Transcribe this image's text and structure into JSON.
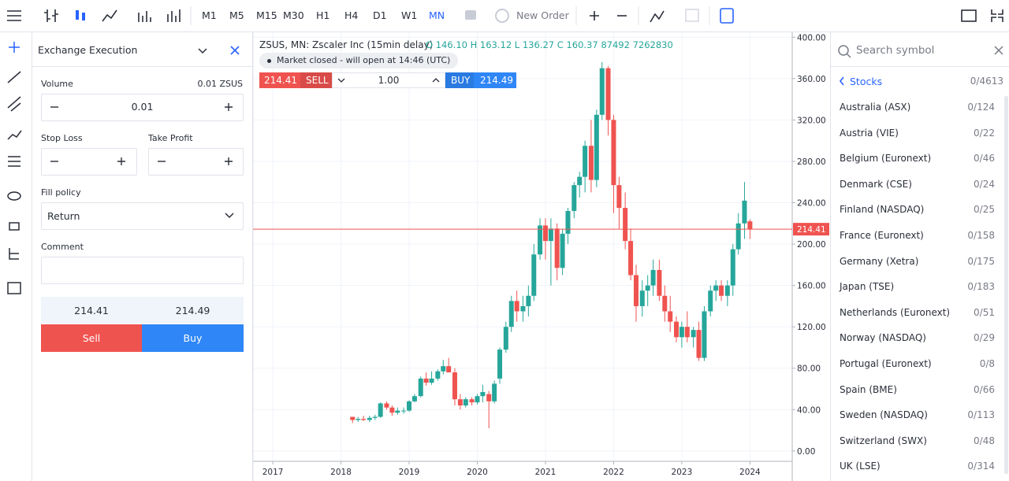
{
  "toolbar": {
    "timeframes": [
      "M1",
      "M5",
      "M15",
      "M30",
      "H1",
      "H4",
      "D1",
      "W1",
      "MN"
    ],
    "active_timeframe": "MN",
    "new_order": "New Order"
  },
  "order_panel": {
    "title": "Exchange Execution",
    "volume_label": "Volume",
    "volume_unit": "0.01 ZSUS",
    "volume": "0.01",
    "stop_loss": "Stop Loss",
    "take_profit": "Take Profit",
    "fill_policy_label": "Fill policy",
    "fill_policy": "Return",
    "comment_label": "Comment",
    "bid": "214.41",
    "ask": "214.49",
    "sell": "Sell",
    "buy": "Buy"
  },
  "trade_bar": {
    "sell_price": "214.41",
    "sell": "SELL",
    "quantity": "1.00",
    "buy": "BUY",
    "buy_price": "214.49"
  },
  "chart_data": {
    "type": "candlestick",
    "title": "ZSUS, MN: Zscaler Inc (15min delay)",
    "ohlc_info": "O 146.10 H 163.12 L 136.27 C 160.37 87492 7262830",
    "status": "Market closed - will open at 14:46 (UTC)",
    "up_color": "#26a69a",
    "down_color": "#ef5350",
    "grid": true,
    "last_price": 214.41,
    "xlim": [
      2016.71,
      2024.62
    ],
    "xticks": [
      2017,
      2018,
      2019,
      2020,
      2021,
      2022,
      2023,
      2024
    ],
    "ylim": [
      -10,
      404
    ],
    "yticks": [
      {
        "value": 0,
        "label": "0.00"
      },
      {
        "value": 40,
        "label": "40.00"
      },
      {
        "value": 80,
        "label": "80.00"
      },
      {
        "value": 120,
        "label": "120.00"
      },
      {
        "value": 160,
        "label": "160.00"
      },
      {
        "value": 200,
        "label": "200.00"
      },
      {
        "value": 240,
        "label": "240.00"
      },
      {
        "value": 280,
        "label": "280.00"
      },
      {
        "value": 320,
        "label": "320.00"
      },
      {
        "value": 360,
        "label": "360.00"
      },
      {
        "value": 400,
        "label": "400.00"
      }
    ],
    "x": [
      2018.17,
      2018.25,
      2018.33,
      2018.42,
      2018.5,
      2018.58,
      2018.67,
      2018.75,
      2018.83,
      2018.92,
      2019.0,
      2019.08,
      2019.17,
      2019.25,
      2019.33,
      2019.42,
      2019.5,
      2019.58,
      2019.67,
      2019.75,
      2019.83,
      2019.92,
      2020.0,
      2020.08,
      2020.17,
      2020.25,
      2020.33,
      2020.42,
      2020.5,
      2020.58,
      2020.67,
      2020.75,
      2020.83,
      2020.92,
      2021.0,
      2021.08,
      2021.17,
      2021.25,
      2021.33,
      2021.42,
      2021.5,
      2021.58,
      2021.67,
      2021.75,
      2021.83,
      2021.92,
      2022.0,
      2022.08,
      2022.17,
      2022.25,
      2022.33,
      2022.42,
      2022.5,
      2022.58,
      2022.67,
      2022.75,
      2022.83,
      2022.92,
      2023.0,
      2023.08,
      2023.17,
      2023.25,
      2023.33,
      2023.42,
      2023.5,
      2023.58,
      2023.67,
      2023.75,
      2023.83,
      2023.92,
      2024.0
    ],
    "open": [
      33,
      30,
      31,
      30,
      32,
      33,
      46,
      42,
      37,
      39,
      39,
      48,
      53,
      70,
      66,
      70,
      77,
      82,
      76,
      50,
      44,
      50,
      47,
      53,
      55,
      48,
      70,
      98,
      120,
      145,
      135,
      140,
      150,
      190,
      218,
      203,
      215,
      177,
      210,
      232,
      257,
      265,
      295,
      262,
      325,
      370,
      320,
      257,
      235,
      203,
      170,
      140,
      155,
      160,
      175,
      150,
      135,
      125,
      110,
      120,
      110,
      117,
      90,
      135,
      155,
      160,
      150,
      160,
      195,
      220,
      222
    ],
    "high": [
      33,
      33,
      34,
      34,
      35,
      47,
      48,
      44,
      42,
      42,
      49,
      55,
      72,
      76,
      77,
      79,
      88,
      90,
      80,
      55,
      52,
      52,
      55,
      64,
      58,
      68,
      100,
      125,
      150,
      155,
      150,
      160,
      200,
      225,
      225,
      225,
      220,
      215,
      235,
      260,
      270,
      300,
      320,
      330,
      376,
      372,
      325,
      265,
      250,
      215,
      180,
      165,
      170,
      185,
      185,
      160,
      150,
      130,
      125,
      135,
      120,
      125,
      140,
      160,
      165,
      165,
      165,
      200,
      230,
      260,
      224
    ],
    "low": [
      27,
      28,
      29,
      28,
      30,
      32,
      40,
      34,
      35,
      36,
      38,
      47,
      52,
      63,
      64,
      68,
      74,
      76,
      44,
      40,
      42,
      44,
      45,
      47,
      22,
      46,
      65,
      95,
      115,
      125,
      125,
      130,
      145,
      185,
      185,
      160,
      165,
      170,
      200,
      225,
      245,
      250,
      250,
      255,
      320,
      305,
      230,
      215,
      195,
      165,
      125,
      130,
      140,
      150,
      145,
      125,
      115,
      105,
      100,
      105,
      100,
      87,
      87,
      130,
      145,
      145,
      140,
      150,
      190,
      205,
      205
    ],
    "close": [
      30,
      31,
      30,
      32,
      33,
      46,
      42,
      37,
      39,
      39,
      48,
      53,
      70,
      66,
      70,
      77,
      82,
      76,
      50,
      44,
      50,
      47,
      53,
      57,
      48,
      65,
      98,
      120,
      145,
      135,
      140,
      150,
      190,
      218,
      203,
      215,
      177,
      210,
      232,
      257,
      265,
      295,
      262,
      325,
      370,
      320,
      257,
      235,
      203,
      170,
      140,
      155,
      160,
      175,
      150,
      135,
      125,
      110,
      120,
      110,
      117,
      90,
      135,
      155,
      160,
      150,
      160,
      195,
      220,
      242,
      214.41
    ]
  },
  "symbols": {
    "search_placeholder": "Search symbol",
    "group": "Stocks",
    "group_count": "0/4613",
    "items": [
      {
        "name": "Australia (ASX)",
        "count": "0/124"
      },
      {
        "name": "Austria (VIE)",
        "count": "0/22"
      },
      {
        "name": "Belgium (Euronext)",
        "count": "0/46"
      },
      {
        "name": "Denmark (CSE)",
        "count": "0/24"
      },
      {
        "name": "Finland (NASDAQ)",
        "count": "0/25"
      },
      {
        "name": "France (Euronext)",
        "count": "0/158"
      },
      {
        "name": "Germany (Xetra)",
        "count": "0/175"
      },
      {
        "name": "Japan (TSE)",
        "count": "0/183"
      },
      {
        "name": "Netherlands (Euronext)",
        "count": "0/51"
      },
      {
        "name": "Norway (NASDAQ)",
        "count": "0/29"
      },
      {
        "name": "Portugal (Euronext)",
        "count": "0/8"
      },
      {
        "name": "Spain (BME)",
        "count": "0/66"
      },
      {
        "name": "Sweden (NASDAQ)",
        "count": "0/113"
      },
      {
        "name": "Switzerland (SWX)",
        "count": "0/48"
      },
      {
        "name": "UK (LSE)",
        "count": "0/314"
      }
    ]
  }
}
